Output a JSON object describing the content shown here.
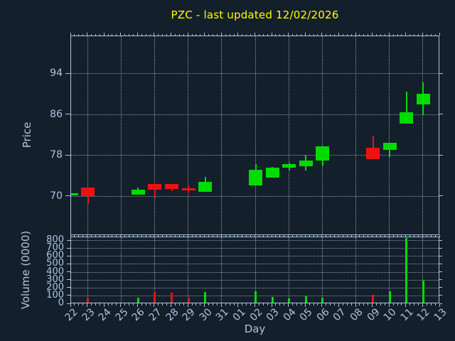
{
  "title": {
    "text": "PZC - last updated 12/02/2026"
  },
  "colors": {
    "background": "#141f2c",
    "spine": "#a9c3df",
    "text": "#b0c4de",
    "title": "#ffff00",
    "grid": "rgba(222,229,236,0.62)",
    "up": "#00dc00",
    "down": "#ed1212"
  },
  "price_axis": {
    "label": "Price",
    "ticks": [
      70,
      78,
      86,
      94
    ],
    "range": [
      62.3,
      101.4
    ]
  },
  "volume_axis": {
    "label": "Volume (0000)",
    "ticks": [
      0,
      100,
      200,
      300,
      400,
      500,
      600,
      700,
      800
    ],
    "range": [
      0,
      845
    ]
  },
  "x_axis": {
    "label": "Day",
    "tick_labels": [
      "22",
      "23",
      "24",
      "25",
      "26",
      "27",
      "28",
      "29",
      "30",
      "31",
      "01",
      "02",
      "03",
      "04",
      "05",
      "06",
      "07",
      "08",
      "09",
      "10",
      "11",
      "12",
      "13"
    ],
    "gridline_indices": [
      1,
      3,
      5,
      7,
      9,
      11,
      13,
      15,
      17,
      19,
      21
    ]
  },
  "chart_data": [
    {
      "type": "candlestick",
      "panel": "price",
      "title": "PZC - last updated 12/02/2026",
      "xlabel": "Day",
      "ylabel": "Price",
      "ylim": [
        62.3,
        101.4
      ],
      "grid": true,
      "candles": [
        {
          "day": "22",
          "index": 0,
          "open": 70.2,
          "high": 70.7,
          "low": 70.2,
          "close": 70.6,
          "direction": "up"
        },
        {
          "day": "23",
          "index": 1,
          "open": 71.8,
          "high": 71.8,
          "low": 68.5,
          "close": 70.1,
          "direction": "down"
        },
        {
          "day": "26",
          "index": 4,
          "open": 70.4,
          "high": 71.8,
          "low": 70.4,
          "close": 71.3,
          "direction": "up"
        },
        {
          "day": "27",
          "index": 5,
          "open": 72.5,
          "high": 72.5,
          "low": 69.7,
          "close": 71.4,
          "direction": "down"
        },
        {
          "day": "28",
          "index": 6,
          "open": 72.4,
          "high": 72.4,
          "low": 71.0,
          "close": 71.5,
          "direction": "down"
        },
        {
          "day": "29",
          "index": 7,
          "open": 71.6,
          "high": 72.0,
          "low": 70.7,
          "close": 71.2,
          "direction": "down"
        },
        {
          "day": "30",
          "index": 8,
          "open": 70.9,
          "high": 73.8,
          "low": 70.9,
          "close": 72.9,
          "direction": "up"
        },
        {
          "day": "02",
          "index": 11,
          "open": 72.2,
          "high": 76.4,
          "low": 72.2,
          "close": 75.2,
          "direction": "up"
        },
        {
          "day": "03",
          "index": 12,
          "open": 73.7,
          "high": 75.8,
          "low": 73.7,
          "close": 75.6,
          "direction": "up"
        },
        {
          "day": "04",
          "index": 13,
          "open": 75.7,
          "high": 76.6,
          "low": 75.1,
          "close": 76.4,
          "direction": "up"
        },
        {
          "day": "05",
          "index": 14,
          "open": 75.9,
          "high": 78.1,
          "low": 75.1,
          "close": 77.1,
          "direction": "up"
        },
        {
          "day": "06",
          "index": 15,
          "open": 77.1,
          "high": 79.9,
          "low": 76.0,
          "close": 79.9,
          "direction": "up"
        },
        {
          "day": "09",
          "index": 18,
          "open": 79.6,
          "high": 81.9,
          "low": 77.3,
          "close": 77.3,
          "direction": "down"
        },
        {
          "day": "10",
          "index": 19,
          "open": 79.2,
          "high": 80.5,
          "low": 77.8,
          "close": 80.5,
          "direction": "up"
        },
        {
          "day": "11",
          "index": 20,
          "open": 84.3,
          "high": 90.5,
          "low": 84.3,
          "close": 86.5,
          "direction": "up"
        },
        {
          "day": "12",
          "index": 21,
          "open": 88.0,
          "high": 92.4,
          "low": 85.9,
          "close": 90.1,
          "direction": "up"
        }
      ]
    },
    {
      "type": "bar",
      "panel": "volume",
      "ylabel": "Volume (0000)",
      "ylim": [
        0,
        845
      ],
      "grid": true,
      "bars": [
        {
          "day": "22",
          "index": 0,
          "volume": 0,
          "direction": "up"
        },
        {
          "day": "23",
          "index": 1,
          "volume": 60,
          "direction": "down"
        },
        {
          "day": "26",
          "index": 4,
          "volume": 70,
          "direction": "up"
        },
        {
          "day": "27",
          "index": 5,
          "volume": 140,
          "direction": "down"
        },
        {
          "day": "28",
          "index": 6,
          "volume": 135,
          "direction": "down"
        },
        {
          "day": "29",
          "index": 7,
          "volume": 70,
          "direction": "down"
        },
        {
          "day": "30",
          "index": 8,
          "volume": 145,
          "direction": "up"
        },
        {
          "day": "02",
          "index": 11,
          "volume": 150,
          "direction": "up"
        },
        {
          "day": "03",
          "index": 12,
          "volume": 85,
          "direction": "up"
        },
        {
          "day": "04",
          "index": 13,
          "volume": 60,
          "direction": "up"
        },
        {
          "day": "05",
          "index": 14,
          "volume": 90,
          "direction": "up"
        },
        {
          "day": "06",
          "index": 15,
          "volume": 70,
          "direction": "up"
        },
        {
          "day": "09",
          "index": 18,
          "volume": 105,
          "direction": "down"
        },
        {
          "day": "10",
          "index": 19,
          "volume": 150,
          "direction": "up"
        },
        {
          "day": "11",
          "index": 20,
          "volume": 830,
          "direction": "up"
        },
        {
          "day": "12",
          "index": 21,
          "volume": 290,
          "direction": "up"
        }
      ]
    }
  ]
}
